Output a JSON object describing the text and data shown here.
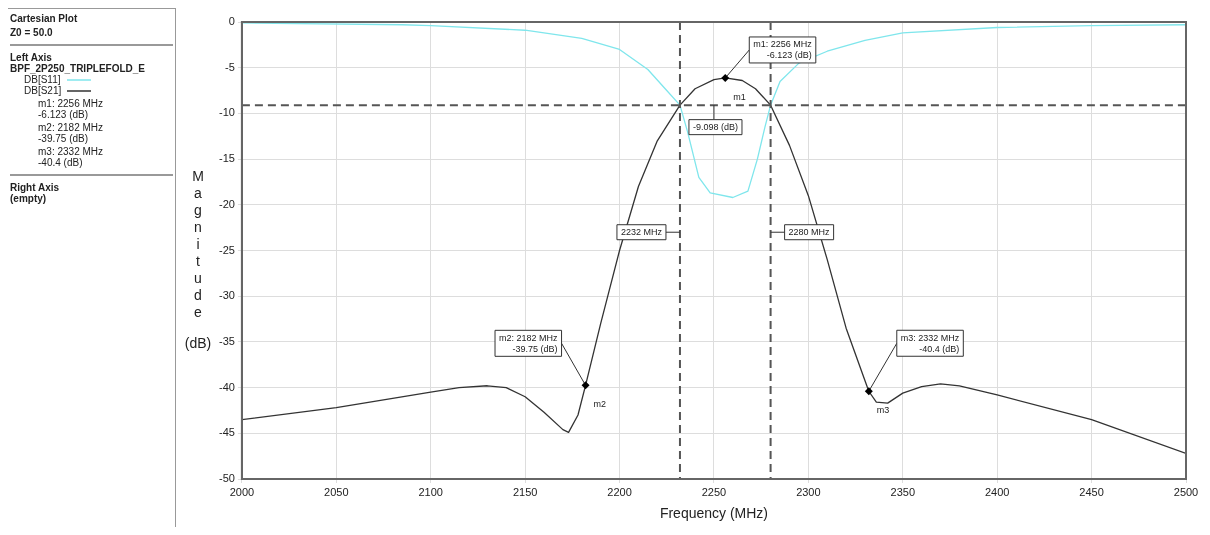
{
  "chart_data": {
    "type": "line",
    "title": "Cartesian Plot",
    "subtitle": "Z0 = 50.0",
    "xlabel": "Frequency (MHz)",
    "ylabel": "Magnitude (dB)",
    "legend_title": "BPF_2P250_TRIPLEFOLD_E",
    "legend": "left",
    "grid": true,
    "xlim": [
      2000,
      2500
    ],
    "xticks": [
      2000,
      2050,
      2100,
      2150,
      2200,
      2250,
      2300,
      2350,
      2400,
      2450,
      2500
    ],
    "ylim": [
      -50,
      0
    ],
    "yticks": [
      0,
      -5,
      -10,
      -15,
      -20,
      -25,
      -30,
      -35,
      -40,
      -45,
      -50
    ],
    "series": [
      {
        "name": "DB[S11]",
        "color": "#7fe6ec",
        "x": [
          2000,
          2085,
          2100,
          2150,
          2180,
          2200,
          2215,
          2225,
          2232,
          2236,
          2242,
          2248,
          2260,
          2268,
          2273,
          2277,
          2280,
          2285,
          2295,
          2310,
          2330,
          2350,
          2400,
          2450,
          2500
        ],
        "values": [
          -0.1,
          -0.3,
          -0.4,
          -0.9,
          -1.8,
          -3.0,
          -5.2,
          -7.5,
          -9.1,
          -12,
          -17,
          -18.7,
          -19.2,
          -18.5,
          -15,
          -11.5,
          -9.1,
          -6.5,
          -4.5,
          -3.2,
          -2.0,
          -1.2,
          -0.6,
          -0.4,
          -0.3
        ]
      },
      {
        "name": "DB[S21]",
        "color": "#333333",
        "x": [
          2000,
          2050,
          2100,
          2115,
          2130,
          2140,
          2150,
          2160,
          2170,
          2173,
          2178,
          2182,
          2190,
          2200,
          2210,
          2220,
          2232,
          2240,
          2250,
          2256,
          2265,
          2272,
          2280,
          2290,
          2300,
          2310,
          2320,
          2332,
          2336,
          2342,
          2350,
          2360,
          2370,
          2380,
          2400,
          2450,
          2500
        ],
        "values": [
          -43.5,
          -42.2,
          -40.5,
          -40.0,
          -39.8,
          -40.0,
          -41.0,
          -42.7,
          -44.6,
          -44.9,
          -43.0,
          -39.75,
          -33,
          -25,
          -18,
          -13,
          -9.1,
          -7.3,
          -6.3,
          -6.123,
          -6.4,
          -7.3,
          -9.1,
          -13.5,
          -19,
          -26,
          -33.5,
          -40.4,
          -41.6,
          -41.7,
          -40.6,
          -39.9,
          -39.6,
          -39.8,
          -40.8,
          -43.5,
          -47.2
        ]
      }
    ],
    "ref_lines": [
      {
        "axis": "y",
        "value": -9.098,
        "label": "-9.098 (dB)",
        "color": "#555555",
        "line_style": "dashed"
      },
      {
        "axis": "x",
        "value": 2232,
        "label": "2232 MHz",
        "color": "#555555",
        "line_style": "dashed"
      },
      {
        "axis": "x",
        "value": 2280,
        "label": "2280 MHz",
        "color": "#555555",
        "line_style": "dashed"
      }
    ],
    "annotations": [
      "Left Axis",
      "m1: 2256 MHz\n-6.123 (dB)",
      "m2: 2182 MHz\n-39.75 (dB)",
      "m3: 2332 MHz\n-40.4 (dB)",
      "Right Axis",
      "(empty)",
      {
        "text": "m1: 2256 MHz\n-6.123 (dB)",
        "x": 2256,
        "y": -6.123
      },
      {
        "text": "m2: 2182 MHz\n-39.75 (dB)",
        "x": 2182,
        "y": -39.75
      },
      {
        "text": "m3: 2332 MHz\n-40.4 (dB)",
        "x": 2332,
        "y": -40.4
      },
      {
        "text": "m1",
        "x": 2256,
        "y": -6.123
      },
      {
        "text": "m2",
        "x": 2182,
        "y": -39.75
      },
      {
        "text": "m3",
        "x": 2332,
        "y": -40.4
      }
    ]
  }
}
